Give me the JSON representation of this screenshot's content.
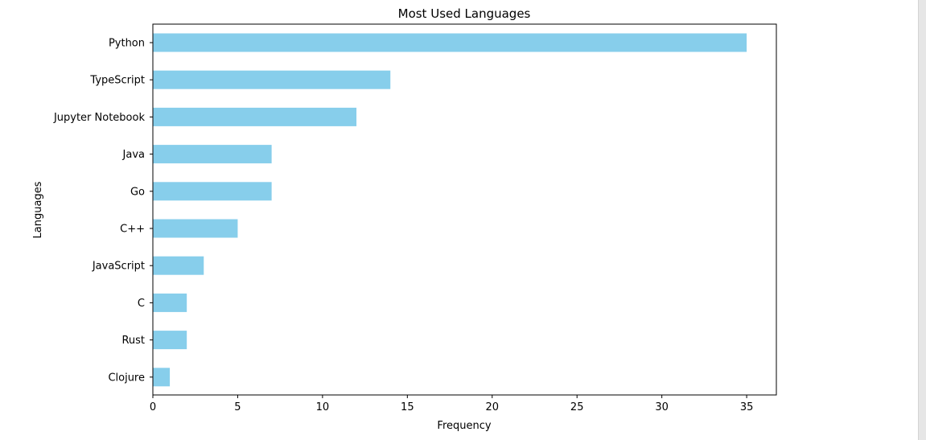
{
  "chart_data": {
    "type": "bar",
    "orientation": "horizontal",
    "title": "Most Used Languages",
    "xlabel": "Frequency",
    "ylabel": "Languages",
    "categories": [
      "Python",
      "TypeScript",
      "Jupyter Notebook",
      "Java",
      "Go",
      "C++",
      "JavaScript",
      "C",
      "Rust",
      "Clojure"
    ],
    "values": [
      35,
      14,
      12,
      7,
      7,
      5,
      3,
      2,
      2,
      1
    ],
    "xlim": [
      0,
      36.75
    ],
    "xticks": [
      0,
      5,
      10,
      15,
      20,
      25,
      30,
      35
    ],
    "grid": false,
    "bar_color": "#87ceeb"
  }
}
